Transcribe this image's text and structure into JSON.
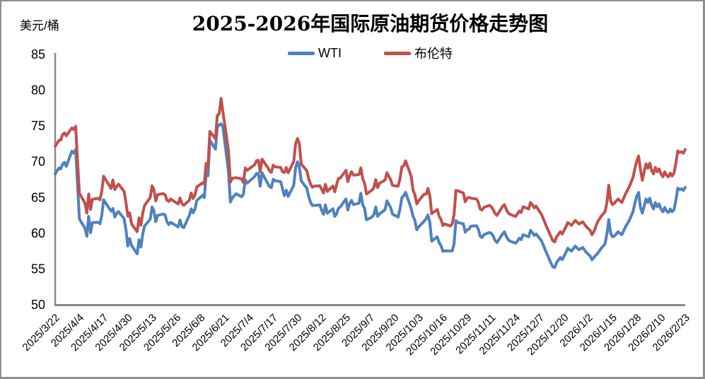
{
  "frame": {
    "border_color": "#8f8f8f",
    "background": "#ffffff"
  },
  "chart_data": {
    "type": "line",
    "title": "2025-2026年国际原油期货价格走势图",
    "ylabel": "美元/桶",
    "ylim": [
      50,
      85
    ],
    "yticks": [
      50,
      55,
      60,
      65,
      70,
      75,
      80,
      85
    ],
    "grid": false,
    "legend_position": "top",
    "axis_color": "#8a8a8a",
    "text_color": "#000000",
    "x_tick_interval_days": 13,
    "x_total_days": 338,
    "x_tick_labels": [
      "2025/3/22",
      "2025/4/4",
      "2025/4/17",
      "2025/4/30",
      "2025/5/13",
      "2025/5/26",
      "2025/6/8",
      "2025/6/21",
      "2025/7/4",
      "2025/7/17",
      "2025/7/30",
      "2025/8/12",
      "2025/8/25",
      "2025/9/7",
      "2025/9/20",
      "2025/10/3",
      "2025/10/16",
      "2025/10/29",
      "2025/11/11",
      "2025/11/24",
      "2025/12/7",
      "2025/12/20",
      "2026/1/2",
      "2026/1/15",
      "2026/1/28",
      "2026/2/10",
      "2026/2/23"
    ],
    "x_days": [
      0,
      2,
      3,
      4,
      5,
      6,
      9,
      10,
      11,
      12,
      13,
      16,
      17,
      18,
      19,
      20,
      23,
      24,
      25,
      26,
      30,
      31,
      32,
      33,
      34,
      37,
      38,
      39,
      40,
      41,
      44,
      45,
      46,
      47,
      48,
      51,
      52,
      53,
      54,
      55,
      58,
      59,
      60,
      61,
      62,
      66,
      67,
      68,
      69,
      72,
      73,
      74,
      75,
      76,
      79,
      80,
      81,
      82,
      83,
      86,
      87,
      88,
      89,
      90,
      93,
      94,
      95,
      96,
      97,
      100,
      101,
      102,
      103,
      107,
      108,
      109,
      110,
      111,
      114,
      115,
      116,
      117,
      118,
      121,
      122,
      123,
      124,
      125,
      128,
      129,
      130,
      131,
      132,
      135,
      136,
      137,
      138,
      139,
      142,
      143,
      144,
      145,
      146,
      149,
      150,
      151,
      152,
      153,
      156,
      157,
      158,
      159,
      160,
      163,
      164,
      165,
      166,
      167,
      170,
      171,
      172,
      173,
      174,
      177,
      178,
      179,
      180,
      181,
      184,
      185,
      186,
      187,
      188,
      191,
      192,
      193,
      194,
      195,
      198,
      199,
      200,
      201,
      202,
      205,
      206,
      207,
      208,
      209,
      212,
      213,
      214,
      215,
      216,
      219,
      220,
      221,
      222,
      223,
      226,
      227,
      228,
      229,
      230,
      233,
      234,
      235,
      236,
      237,
      240,
      241,
      242,
      243,
      244,
      247,
      248,
      249,
      250,
      251,
      254,
      255,
      256,
      257,
      258,
      259,
      261,
      263,
      265,
      266,
      267,
      268,
      269,
      271,
      272,
      274,
      275,
      277,
      279,
      281,
      283,
      285,
      287,
      288,
      289,
      291,
      293,
      295,
      296,
      297,
      298,
      299,
      300,
      302,
      304,
      306,
      308,
      310,
      311,
      312,
      313,
      314,
      315,
      316,
      317,
      318,
      319,
      320,
      321,
      322,
      323,
      324,
      325,
      326,
      327,
      328,
      329,
      330,
      331,
      332,
      333,
      334,
      335,
      336,
      337,
      338
    ],
    "series": [
      {
        "name": "WTI",
        "color": "#4F81BD",
        "values": [
          68.28,
          69.11,
          69.0,
          69.65,
          69.92,
          69.36,
          71.48,
          71.2,
          71.71,
          66.95,
          61.99,
          60.7,
          59.58,
          62.35,
          60.07,
          61.5,
          61.53,
          61.33,
          62.47,
          64.68,
          63.08,
          63.47,
          62.27,
          62.79,
          63.02,
          62.05,
          60.42,
          58.21,
          59.24,
          58.29,
          57.13,
          59.09,
          58.07,
          59.91,
          61.02,
          61.95,
          63.67,
          63.15,
          61.62,
          62.49,
          62.69,
          62.56,
          61.57,
          61.2,
          61.53,
          60.89,
          61.84,
          60.94,
          60.79,
          62.52,
          63.41,
          62.85,
          63.37,
          64.58,
          65.29,
          64.98,
          68.15,
          68.04,
          72.98,
          71.77,
          74.84,
          75.14,
          75.3,
          74.93,
          68.51,
          64.37,
          64.92,
          65.24,
          65.52,
          65.11,
          65.45,
          67.45,
          67.0,
          67.93,
          68.33,
          68.38,
          66.57,
          68.45,
          66.98,
          66.52,
          66.38,
          67.54,
          67.34,
          67.2,
          66.21,
          65.25,
          66.03,
          65.16,
          66.71,
          69.21,
          70.0,
          69.26,
          67.33,
          66.29,
          65.16,
          64.35,
          63.88,
          63.88,
          63.96,
          63.17,
          62.65,
          63.96,
          62.8,
          63.42,
          62.35,
          62.71,
          63.52,
          63.66,
          64.8,
          63.25,
          64.15,
          64.6,
          64.01,
          64.2,
          65.59,
          63.97,
          63.48,
          61.87,
          62.26,
          62.63,
          63.67,
          62.37,
          62.69,
          63.3,
          64.52,
          64.05,
          63.57,
          62.68,
          62.27,
          63.41,
          64.99,
          65.23,
          65.72,
          63.45,
          62.37,
          61.78,
          60.48,
          60.88,
          61.69,
          62.01,
          62.55,
          61.51,
          58.9,
          59.49,
          58.7,
          58.27,
          57.46,
          57.54,
          57.52,
          57.52,
          58.5,
          61.79,
          61.5,
          61.31,
          60.15,
          60.48,
          60.57,
          60.98,
          61.05,
          60.6,
          59.6,
          59.4,
          59.8,
          60.1,
          60.0,
          59.6,
          59.0,
          58.7,
          59.9,
          60.2,
          59.6,
          59.1,
          58.9,
          58.6,
          58.9,
          59.3,
          59.1,
          59.8,
          59.5,
          60.4,
          60.1,
          59.7,
          59.9,
          59.6,
          58.9,
          57.6,
          56.4,
          55.8,
          55.3,
          55.2,
          55.9,
          56.6,
          56.3,
          57.3,
          57.9,
          57.5,
          58.2,
          57.7,
          58.0,
          57.3,
          56.8,
          56.3,
          56.6,
          57.2,
          57.9,
          58.5,
          59.9,
          61.9,
          60.0,
          59.5,
          59.6,
          60.2,
          59.8,
          60.9,
          61.8,
          63.0,
          64.2,
          65.2,
          65.7,
          63.6,
          62.8,
          63.8,
          64.8,
          64.3,
          64.9,
          63.9,
          63.4,
          64.3,
          63.7,
          64.1,
          63.4,
          63.0,
          63.6,
          63.1,
          62.9,
          63.4,
          63.0,
          63.3,
          64.6,
          66.3,
          66.1,
          66.2,
          66.0,
          66.4
        ]
      },
      {
        "name": "布伦特",
        "color": "#C0504D",
        "values": [
          72.16,
          73.0,
          73.02,
          73.79,
          74.03,
          73.63,
          74.74,
          74.49,
          74.95,
          70.14,
          65.58,
          64.21,
          62.82,
          65.48,
          63.33,
          64.76,
          64.88,
          64.67,
          65.85,
          67.96,
          66.26,
          67.44,
          66.12,
          66.55,
          66.87,
          65.86,
          64.25,
          62.4,
          62.84,
          61.29,
          60.23,
          62.15,
          61.12,
          62.84,
          63.91,
          64.96,
          66.63,
          66.09,
          64.53,
          65.41,
          65.54,
          65.38,
          64.6,
          64.44,
          64.78,
          64.09,
          64.92,
          64.15,
          63.9,
          64.63,
          65.63,
          64.86,
          65.34,
          66.47,
          67.04,
          66.87,
          69.77,
          69.36,
          74.23,
          73.23,
          76.45,
          76.7,
          78.85,
          77.01,
          71.48,
          67.14,
          67.68,
          67.73,
          67.77,
          67.61,
          67.11,
          69.11,
          68.8,
          69.58,
          70.15,
          70.19,
          68.64,
          70.36,
          69.21,
          68.71,
          68.52,
          69.52,
          69.28,
          69.21,
          68.59,
          68.51,
          69.18,
          68.44,
          70.04,
          72.51,
          73.24,
          72.53,
          69.67,
          68.76,
          67.64,
          66.89,
          66.43,
          66.59,
          66.63,
          66.12,
          65.63,
          66.84,
          65.85,
          66.6,
          65.79,
          66.84,
          67.67,
          67.73,
          68.8,
          67.22,
          68.05,
          68.62,
          68.12,
          68.2,
          69.14,
          67.6,
          66.99,
          65.5,
          66.02,
          66.39,
          67.49,
          66.37,
          66.99,
          67.44,
          68.47,
          67.95,
          67.46,
          66.68,
          66.57,
          67.63,
          69.31,
          69.42,
          70.13,
          67.97,
          66.03,
          65.35,
          64.11,
          64.53,
          65.47,
          65.45,
          66.25,
          65.22,
          62.73,
          63.32,
          62.39,
          61.91,
          61.06,
          61.29,
          61.01,
          61.32,
          62.59,
          65.99,
          65.94,
          65.62,
          64.4,
          64.92,
          65.0,
          64.9,
          64.8,
          64.35,
          63.4,
          63.25,
          63.6,
          63.9,
          63.7,
          63.3,
          62.75,
          62.5,
          63.75,
          64.0,
          63.35,
          62.85,
          62.65,
          62.35,
          62.7,
          63.1,
          62.9,
          63.7,
          63.4,
          64.3,
          64.0,
          63.55,
          63.8,
          63.4,
          62.6,
          61.3,
          60.1,
          59.5,
          58.95,
          58.8,
          59.5,
          60.2,
          59.9,
          60.9,
          61.5,
          61.1,
          61.8,
          61.3,
          61.6,
          60.9,
          60.4,
          59.8,
          60.2,
          61.6,
          62.4,
          63.0,
          64.3,
          66.7,
          64.5,
          64.0,
          64.2,
          64.8,
          64.3,
          65.5,
          66.5,
          67.8,
          69.0,
          70.1,
          70.8,
          68.9,
          67.4,
          68.6,
          69.7,
          69.1,
          69.8,
          68.8,
          68.3,
          69.2,
          68.6,
          69.0,
          68.3,
          67.9,
          68.6,
          68.1,
          67.9,
          68.4,
          68.0,
          68.4,
          69.8,
          71.5,
          71.3,
          71.4,
          71.2,
          71.7
        ]
      }
    ]
  }
}
